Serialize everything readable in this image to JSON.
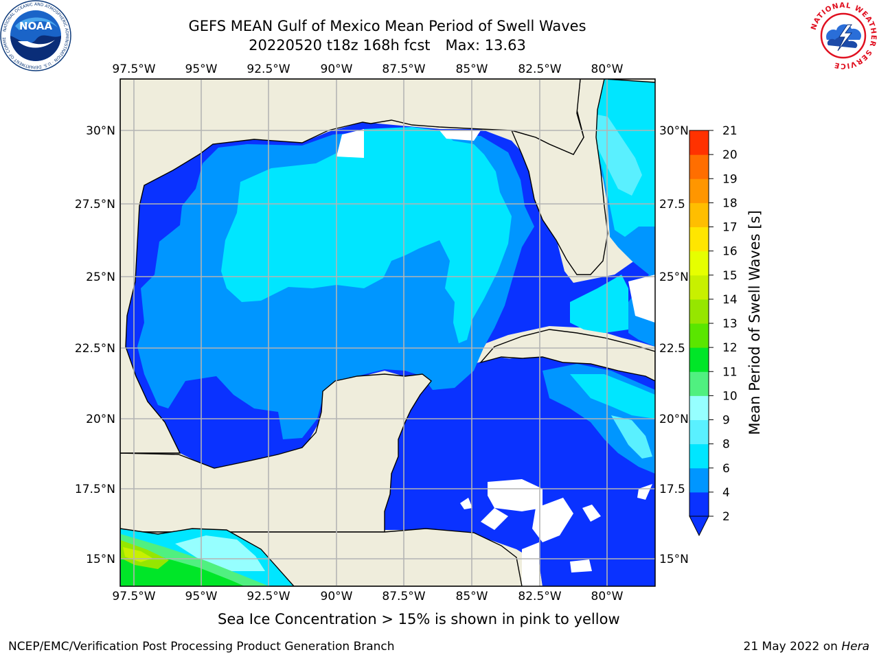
{
  "header": {
    "title": "GEFS MEAN Gulf of Mexico Mean Period of Swell Waves",
    "run": "20220520 t18z 168h fcst",
    "max_label": "Max: 13.63"
  },
  "logos": {
    "left": {
      "icon": "noaa-logo",
      "text": "NOAA",
      "ring_text": "NATIONAL OCEANIC AND ATMOSPHERIC ADMINISTRATION · U.S. DEPARTMENT OF COMMERCE"
    },
    "right": {
      "icon": "national-weather-service-logo",
      "ring_text": "NATIONAL WEATHER SERVICE"
    }
  },
  "map": {
    "lon_ticks": [
      "97.5°W",
      "95°W",
      "92.5°W",
      "90°W",
      "87.5°W",
      "85°W",
      "82.5°W",
      "80°W"
    ],
    "lat_ticks_left": [
      "30°N",
      "27.5°N",
      "25°N",
      "22.5°N",
      "20°N",
      "17.5°N",
      "15°N"
    ],
    "lat_ticks_right": [
      "30°N",
      "27.5",
      "25°N",
      "22.5",
      "20°N",
      "17.5",
      "15°N"
    ],
    "colors": {
      "land": "#efeddc",
      "grid": "#b4b4b4",
      "coast": "#000000"
    }
  },
  "colorbar": {
    "label": "Mean Period of Swell Waves [s]",
    "ticks": [
      "2",
      "4",
      "6",
      "8",
      "9",
      "10",
      "11",
      "12",
      "13",
      "14",
      "15",
      "16",
      "17",
      "18",
      "19",
      "20",
      "21"
    ],
    "colors": [
      "#0a32ff",
      "#0096ff",
      "#00e6ff",
      "#5af0ff",
      "#96ffff",
      "#50f080",
      "#00e628",
      "#5ae600",
      "#96e600",
      "#c8f000",
      "#e6ff00",
      "#ffe600",
      "#ffbe00",
      "#ff9600",
      "#ff6e00",
      "#ff3200",
      "#ff0000"
    ]
  },
  "footer": {
    "note": "Sea Ice Concentration > 15% is shown in pink to yellow",
    "credit_left": "NCEP/EMC/Verification Post Processing Product Generation Branch",
    "credit_date": "21 May 2022 on ",
    "credit_host": "Hera"
  }
}
